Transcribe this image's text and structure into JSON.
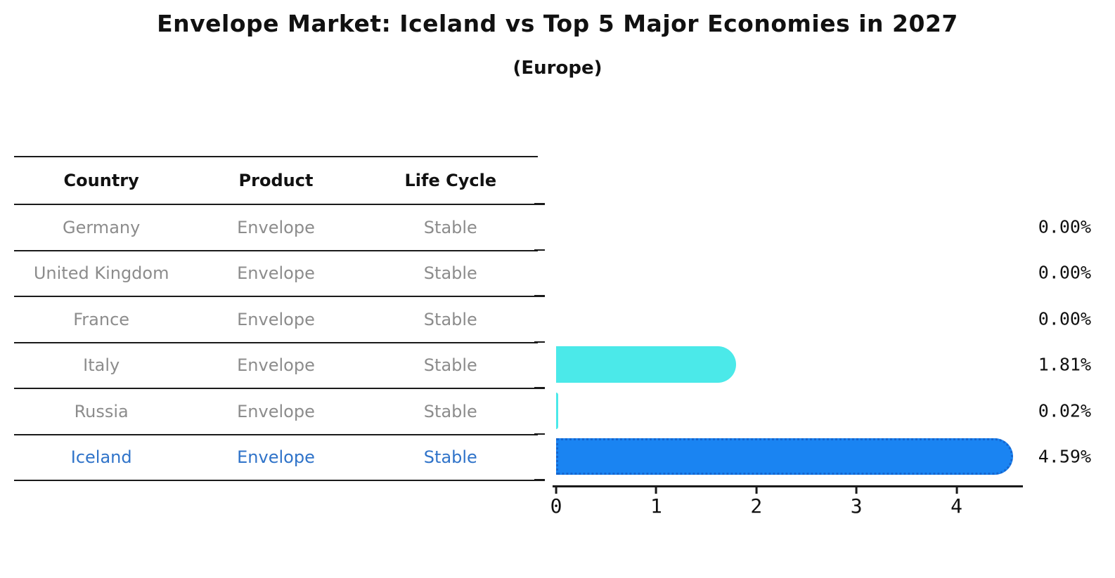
{
  "title": "Envelope Market: Iceland vs Top 5 Major Economies in 2027",
  "subtitle": "(Europe)",
  "table": {
    "headers": [
      "Country",
      "Product",
      "Life Cycle"
    ],
    "rows": [
      {
        "country": "Germany",
        "product": "Envelope",
        "life_cycle": "Stable",
        "highlight": false
      },
      {
        "country": "United Kingdom",
        "product": "Envelope",
        "life_cycle": "Stable",
        "highlight": false
      },
      {
        "country": "France",
        "product": "Envelope",
        "life_cycle": "Stable",
        "highlight": false
      },
      {
        "country": "Italy",
        "product": "Envelope",
        "life_cycle": "Stable",
        "highlight": false
      },
      {
        "country": "Russia",
        "product": "Envelope",
        "life_cycle": "Stable",
        "highlight": false
      },
      {
        "country": "Iceland",
        "product": "Envelope",
        "life_cycle": "Stable",
        "highlight": true
      }
    ]
  },
  "chart_data": {
    "type": "bar",
    "orientation": "horizontal",
    "title": "Envelope Market: Iceland vs Top 5 Major Economies in 2027",
    "subtitle": "(Europe)",
    "categories": [
      "Germany",
      "United Kingdom",
      "France",
      "Italy",
      "Russia",
      "Iceland"
    ],
    "values": [
      0.0,
      0.0,
      0.0,
      1.81,
      0.02,
      4.59
    ],
    "labels": [
      "0.00%",
      "0.00%",
      "0.00%",
      "1.81%",
      "0.02%",
      "4.59%"
    ],
    "xlim": [
      0,
      4.69
    ],
    "xticks": [
      "0",
      "1",
      "2",
      "3",
      "4"
    ],
    "grid": false,
    "legend": "none",
    "highlight_index": 5,
    "bar_colors": [
      "#4be9e9",
      "#4be9e9",
      "#4be9e9",
      "#4be9e9",
      "#4be9e9",
      "#1a84f2"
    ],
    "colors": {
      "default_bar": "#4be9e9",
      "highlight_bar": "#1a84f2",
      "highlight_border": "#1565ce",
      "highlight_text": "#2f73c9",
      "row_text": "#8c8c8c",
      "axis_text": "#111111"
    }
  }
}
